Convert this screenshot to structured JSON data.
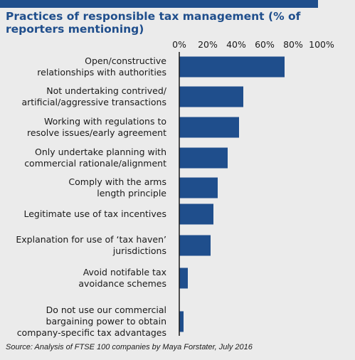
{
  "chart_data": {
    "type": "bar",
    "orientation": "horizontal",
    "title": "Practices of responsible tax management (% of reporters mentioning)",
    "categories": [
      [
        "Open/constructive",
        "relationships with authorities"
      ],
      [
        "Not undertaking  contrived/",
        "artificial/aggressive transactions"
      ],
      [
        "Working with regulations to",
        "resolve issues/early agreement"
      ],
      [
        "Only undertake planning with",
        "commercial rationale/alignment"
      ],
      [
        "Comply with the arms",
        "length principle"
      ],
      [
        "Legitimate use of tax incentives"
      ],
      [
        "Explanation for use of ‘tax haven’",
        "jurisdictions"
      ],
      [
        "Avoid notifable tax",
        "avoidance schemes"
      ],
      [
        "Do not use our commercial",
        "bargaining power to obtain",
        "company-specific tax advantages"
      ]
    ],
    "values": [
      74,
      45,
      42,
      34,
      27,
      24,
      22,
      6,
      3
    ],
    "xlim": [
      0,
      100
    ],
    "xticks": [
      "0%",
      "20%",
      "40%",
      "60%",
      "80%",
      "100%"
    ],
    "xtick_values": [
      0,
      20,
      40,
      60,
      80,
      100
    ],
    "bar_color": "#1f4e8c",
    "grid": false,
    "source": "Source: Analysis of FTSE 100 companies by Maya Forstater, July 2016"
  },
  "colors": {
    "accent": "#1f4e8c",
    "background": "#ebebeb"
  }
}
